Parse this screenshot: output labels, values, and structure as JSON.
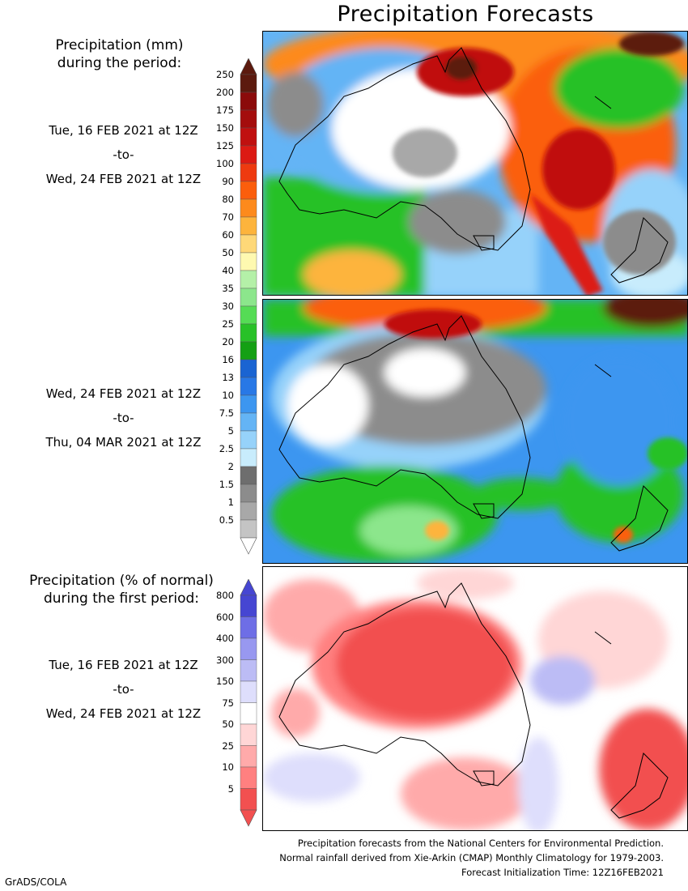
{
  "title": "Precipitation Forecasts",
  "legend_mm": {
    "heading": [
      "Precipitation (mm)",
      "during the period:"
    ],
    "labels": [
      "250",
      "200",
      "175",
      "150",
      "125",
      "100",
      "90",
      "80",
      "70",
      "60",
      "50",
      "40",
      "35",
      "30",
      "25",
      "20",
      "16",
      "13",
      "10",
      "7.5",
      "5",
      "2.5",
      "2",
      "1.5",
      "1",
      "0.5"
    ],
    "colors": [
      "#5c1a0e",
      "#8b0b0b",
      "#a40d0d",
      "#c01010",
      "#dc1a14",
      "#ee3a10",
      "#fb5e0c",
      "#fd8a1c",
      "#fdb43c",
      "#fed878",
      "#fef9b0",
      "#b4f0a8",
      "#8ce68c",
      "#55dc55",
      "#28c128",
      "#14a014",
      "#1a64d2",
      "#2878e6",
      "#3c96f0",
      "#64b4f5",
      "#96d2fa",
      "#c8ecfc",
      "#6e6e6e",
      "#8c8c8c",
      "#a8a8a8",
      "#c4c4c4"
    ]
  },
  "period1": {
    "from": "Tue, 16 FEB 2021 at 12Z",
    "sep": "-to-",
    "to": "Wed, 24 FEB 2021 at 12Z"
  },
  "period2": {
    "from": "Wed, 24 FEB 2021 at 12Z",
    "sep": "-to-",
    "to": "Thu, 04 MAR 2021 at 12Z"
  },
  "legend_pct": {
    "heading": [
      "Precipitation (% of normal)",
      "during the first period:"
    ],
    "labels": [
      "800",
      "600",
      "400",
      "300",
      "150",
      "75",
      "50",
      "25",
      "10",
      "5"
    ],
    "colors": [
      "#4646d2",
      "#6e6ee6",
      "#9898f0",
      "#bcbcf5",
      "#dedefc",
      "#ffffff",
      "#ffd6d6",
      "#ffaaaa",
      "#ff8080",
      "#f25050"
    ]
  },
  "period3": {
    "from": "Tue, 16 FEB 2021 at 12Z",
    "sep": "-to-",
    "to": "Wed, 24 FEB 2021 at 12Z"
  },
  "footer": [
    "Precipitation forecasts from the National Centers for Environmental Prediction.",
    "Normal rainfall derived from Xie-Arkin (CMAP) Monthly Climatology for 1979-2003.",
    "Forecast Initialization Time: 12Z16FEB2021"
  ],
  "credit": "GrADS/COLA"
}
